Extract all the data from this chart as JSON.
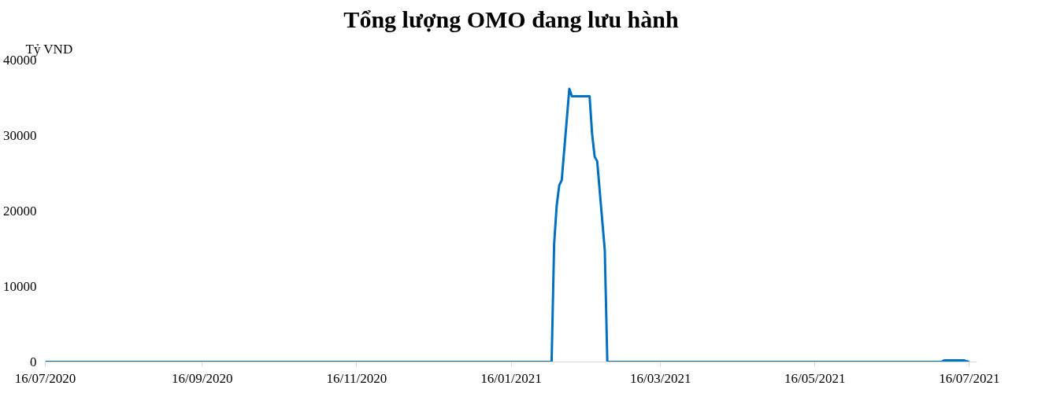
{
  "chart_data": {
    "type": "line",
    "title": "Tổng lượng OMO đang lưu hành",
    "ylabel": "Tỷ VND",
    "x": [
      "2020-07-16",
      "2021-02-01",
      "2021-02-02",
      "2021-02-03",
      "2021-02-04",
      "2021-02-05",
      "2021-02-08",
      "2021-02-09",
      "2021-02-16",
      "2021-02-17",
      "2021-02-18",
      "2021-02-19",
      "2021-02-22",
      "2021-02-23",
      "2021-07-05",
      "2021-07-06",
      "2021-07-14",
      "2021-07-16"
    ],
    "series": [
      {
        "color": "#0070c0",
        "values": [
          0,
          0,
          15700,
          20700,
          23400,
          24100,
          36200,
          35200,
          35200,
          30200,
          27200,
          26600,
          14800,
          0,
          0,
          200,
          200,
          0
        ]
      }
    ],
    "xlim": [
      "2020-07-16",
      "2021-07-19"
    ],
    "xticks": [
      {
        "value": "2020-07-16",
        "label": "16/07/2020"
      },
      {
        "value": "2020-09-16",
        "label": "16/09/2020"
      },
      {
        "value": "2020-11-16",
        "label": "16/11/2020"
      },
      {
        "value": "2021-01-16",
        "label": "16/01/2021"
      },
      {
        "value": "2021-03-16",
        "label": "16/03/2021"
      },
      {
        "value": "2021-05-16",
        "label": "16/05/2021"
      },
      {
        "value": "2021-07-16",
        "label": "16/07/2021"
      }
    ],
    "ylim": [
      0,
      40000
    ],
    "yticks": [
      0,
      10000,
      20000,
      30000,
      40000
    ],
    "grid": false,
    "line_style": "solid"
  }
}
